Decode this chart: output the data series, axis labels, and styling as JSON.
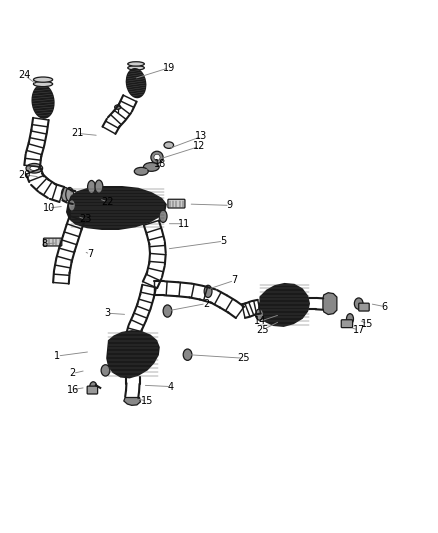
{
  "bg_color": "#ffffff",
  "line_color": "#1a1a1a",
  "label_color": "#000000",
  "ldr_color": "#888888",
  "label_fs": 7.0,
  "fig_w": 4.38,
  "fig_h": 5.33,
  "dpi": 100,
  "labels_leaders": [
    [
      "24",
      [
        0.055,
        0.938
      ],
      [
        0.085,
        0.915
      ]
    ],
    [
      "19",
      [
        0.385,
        0.955
      ],
      [
        0.305,
        0.93
      ]
    ],
    [
      "21",
      [
        0.175,
        0.805
      ],
      [
        0.225,
        0.8
      ]
    ],
    [
      "13",
      [
        0.46,
        0.798
      ],
      [
        0.385,
        0.77
      ]
    ],
    [
      "12",
      [
        0.455,
        0.775
      ],
      [
        0.36,
        0.745
      ]
    ],
    [
      "18",
      [
        0.365,
        0.735
      ],
      [
        0.315,
        0.715
      ]
    ],
    [
      "20",
      [
        0.055,
        0.71
      ],
      [
        0.09,
        0.705
      ]
    ],
    [
      "10",
      [
        0.11,
        0.634
      ],
      [
        0.145,
        0.638
      ]
    ],
    [
      "23",
      [
        0.195,
        0.608
      ],
      [
        0.175,
        0.615
      ]
    ],
    [
      "22",
      [
        0.245,
        0.648
      ],
      [
        0.225,
        0.655
      ]
    ],
    [
      "9",
      [
        0.525,
        0.64
      ],
      [
        0.43,
        0.643
      ]
    ],
    [
      "11",
      [
        0.42,
        0.598
      ],
      [
        0.38,
        0.598
      ]
    ],
    [
      "8",
      [
        0.1,
        0.552
      ],
      [
        0.13,
        0.554
      ]
    ],
    [
      "7",
      [
        0.205,
        0.528
      ],
      [
        0.19,
        0.535
      ]
    ],
    [
      "5",
      [
        0.51,
        0.558
      ],
      [
        0.38,
        0.54
      ]
    ],
    [
      "7",
      [
        0.535,
        0.468
      ],
      [
        0.475,
        0.448
      ]
    ],
    [
      "2",
      [
        0.47,
        0.415
      ],
      [
        0.375,
        0.397
      ]
    ],
    [
      "3",
      [
        0.245,
        0.393
      ],
      [
        0.29,
        0.39
      ]
    ],
    [
      "1",
      [
        0.13,
        0.295
      ],
      [
        0.205,
        0.305
      ]
    ],
    [
      "2",
      [
        0.165,
        0.255
      ],
      [
        0.195,
        0.262
      ]
    ],
    [
      "16",
      [
        0.165,
        0.218
      ],
      [
        0.195,
        0.223
      ]
    ],
    [
      "4",
      [
        0.39,
        0.225
      ],
      [
        0.325,
        0.228
      ]
    ],
    [
      "15",
      [
        0.335,
        0.192
      ],
      [
        0.305,
        0.198
      ]
    ],
    [
      "25",
      [
        0.555,
        0.29
      ],
      [
        0.43,
        0.298
      ]
    ],
    [
      "14",
      [
        0.595,
        0.375
      ],
      [
        0.64,
        0.39
      ]
    ],
    [
      "6",
      [
        0.88,
        0.408
      ],
      [
        0.845,
        0.415
      ]
    ],
    [
      "15",
      [
        0.84,
        0.368
      ],
      [
        0.82,
        0.378
      ]
    ],
    [
      "17",
      [
        0.82,
        0.355
      ],
      [
        0.8,
        0.36
      ]
    ],
    [
      "25",
      [
        0.6,
        0.355
      ],
      [
        0.64,
        0.375
      ]
    ]
  ]
}
